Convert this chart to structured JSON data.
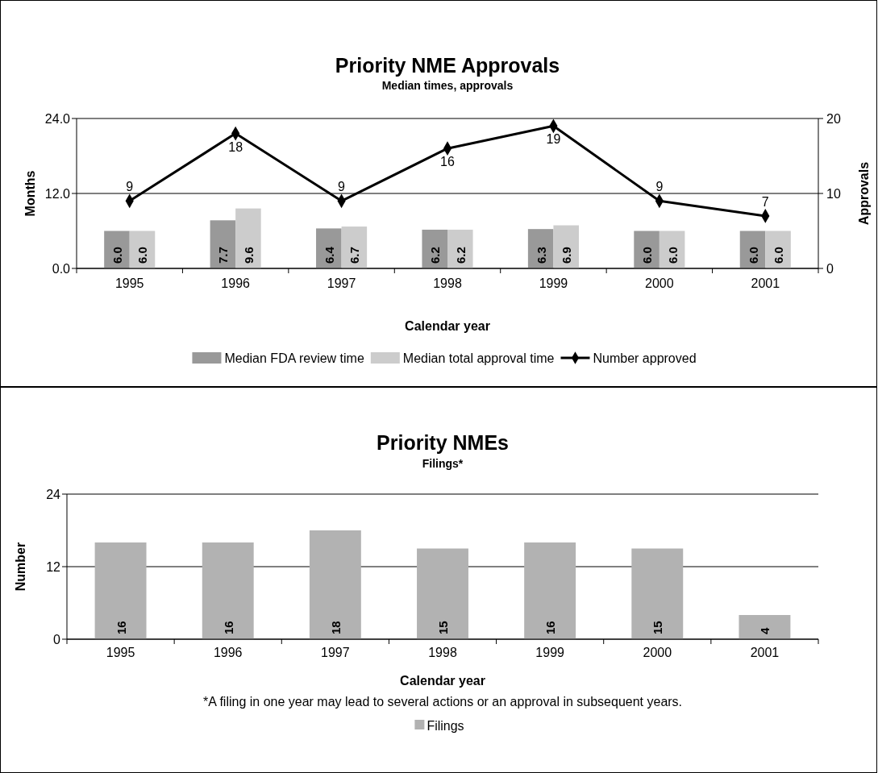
{
  "chart_data": [
    {
      "type": "bar",
      "title": "Priority NME Approvals",
      "subtitle": "Median times, approvals",
      "xlabel": "Calendar year",
      "ylabel": "Months",
      "y2label": "Approvals",
      "categories": [
        "1995",
        "1996",
        "1997",
        "1998",
        "1999",
        "2000",
        "2001"
      ],
      "series": [
        {
          "name": "Median FDA review time",
          "color": "#999999",
          "values": [
            6.0,
            7.7,
            6.4,
            6.2,
            6.3,
            6.0,
            6.0
          ],
          "value_labels": [
            "6.0",
            "7.7",
            "6.4",
            "6.2",
            "6.3",
            "6.0",
            "6.0"
          ]
        },
        {
          "name": "Median total approval time",
          "color": "#cccccc",
          "values": [
            6.0,
            9.6,
            6.7,
            6.2,
            6.9,
            6.0,
            6.0
          ],
          "value_labels": [
            "6.0",
            "9.6",
            "6.7",
            "6.2",
            "6.9",
            "6.0",
            "6.0"
          ]
        },
        {
          "name": "Number approved",
          "type": "line",
          "axis": "y2",
          "color": "#000000",
          "values": [
            9,
            18,
            9,
            16,
            19,
            9,
            7
          ],
          "value_labels": [
            "9",
            "18",
            "9",
            "16",
            "19",
            "9",
            "7"
          ]
        }
      ],
      "ylim": [
        0,
        24
      ],
      "yticks": [
        {
          "value": 0,
          "label": "0.0"
        },
        {
          "value": 12,
          "label": "12.0"
        },
        {
          "value": 24,
          "label": "24.0"
        }
      ],
      "y2lim": [
        0,
        20
      ],
      "y2ticks": [
        0,
        10,
        20
      ],
      "grid": "y",
      "legend": "bottom",
      "marker": "diamond",
      "line_style": "solid"
    },
    {
      "type": "bar",
      "title": "Priority NMEs",
      "subtitle": "Filings*",
      "xlabel": "Calendar year",
      "ylabel": "Number",
      "categories": [
        "1995",
        "1996",
        "1997",
        "1998",
        "1999",
        "2000",
        "2001"
      ],
      "series": [
        {
          "name": "Filings",
          "color": "#b2b2b2",
          "values": [
            16,
            16,
            18,
            15,
            16,
            15,
            4
          ]
        }
      ],
      "ylim": [
        0,
        24
      ],
      "yticks": [
        0,
        12,
        24
      ],
      "grid": "y",
      "legend": "bottom",
      "data_labels": true,
      "annotations": [
        "*A filing in one year may lead to several actions or an approval in subsequent years."
      ]
    }
  ]
}
